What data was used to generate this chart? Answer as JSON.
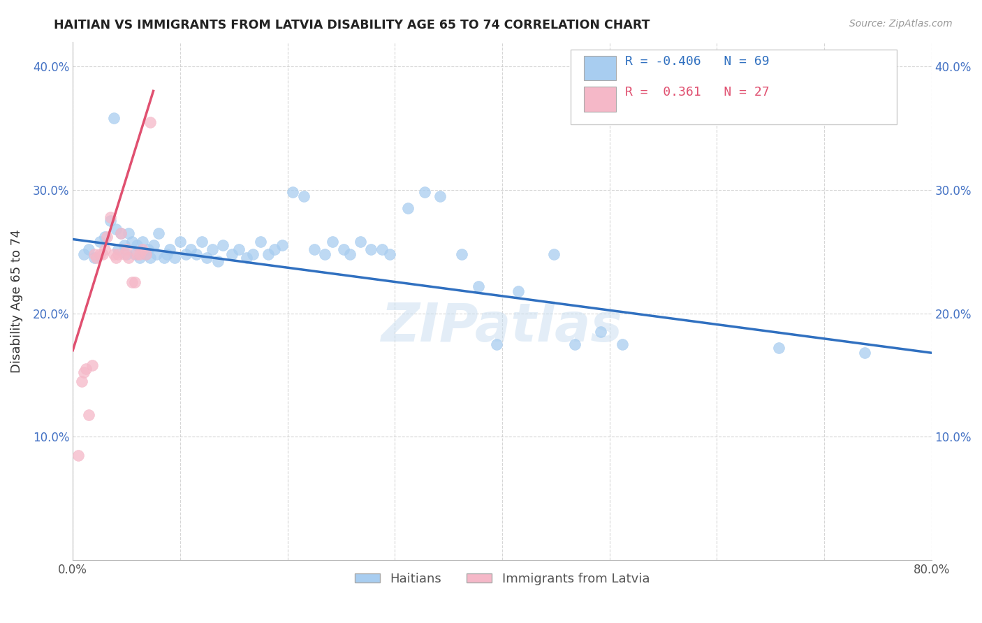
{
  "title": "HAITIAN VS IMMIGRANTS FROM LATVIA DISABILITY AGE 65 TO 74 CORRELATION CHART",
  "source": "Source: ZipAtlas.com",
  "ylabel": "Disability Age 65 to 74",
  "xlabel": "",
  "xlim": [
    0.0,
    0.8
  ],
  "ylim": [
    0.0,
    0.42
  ],
  "yticks": [
    0.0,
    0.1,
    0.2,
    0.3,
    0.4
  ],
  "ytick_labels": [
    "",
    "10.0%",
    "20.0%",
    "30.0%",
    "40.0%"
  ],
  "xticks": [
    0.0,
    0.1,
    0.2,
    0.3,
    0.4,
    0.5,
    0.6,
    0.7,
    0.8
  ],
  "xtick_labels": [
    "0.0%",
    "",
    "",
    "",
    "",
    "",
    "",
    "",
    "80.0%"
  ],
  "r_haitian": "-0.406",
  "n_haitian": "69",
  "r_latvia": "0.361",
  "n_latvia": "27",
  "haitian_color": "#a8cdf0",
  "latvia_color": "#f5b8c8",
  "haitian_line_color": "#3070c0",
  "latvia_line_color": "#e05070",
  "watermark": "ZIPatlas",
  "blue_x": [
    0.01,
    0.015,
    0.02,
    0.025,
    0.03,
    0.035,
    0.038,
    0.04,
    0.042,
    0.045,
    0.048,
    0.05,
    0.052,
    0.055,
    0.058,
    0.06,
    0.062,
    0.065,
    0.068,
    0.07,
    0.072,
    0.075,
    0.078,
    0.08,
    0.085,
    0.088,
    0.09,
    0.095,
    0.1,
    0.105,
    0.11,
    0.115,
    0.12,
    0.125,
    0.13,
    0.135,
    0.14,
    0.148,
    0.155,
    0.162,
    0.168,
    0.175,
    0.182,
    0.188,
    0.195,
    0.205,
    0.215,
    0.225,
    0.235,
    0.242,
    0.252,
    0.258,
    0.268,
    0.278,
    0.288,
    0.295,
    0.312,
    0.328,
    0.342,
    0.362,
    0.378,
    0.395,
    0.415,
    0.448,
    0.468,
    0.492,
    0.512,
    0.658,
    0.738
  ],
  "blue_y": [
    0.248,
    0.252,
    0.245,
    0.258,
    0.262,
    0.275,
    0.358,
    0.268,
    0.252,
    0.265,
    0.255,
    0.248,
    0.265,
    0.258,
    0.248,
    0.255,
    0.245,
    0.258,
    0.248,
    0.252,
    0.245,
    0.255,
    0.248,
    0.265,
    0.245,
    0.248,
    0.252,
    0.245,
    0.258,
    0.248,
    0.252,
    0.248,
    0.258,
    0.245,
    0.252,
    0.242,
    0.255,
    0.248,
    0.252,
    0.245,
    0.248,
    0.258,
    0.248,
    0.252,
    0.255,
    0.298,
    0.295,
    0.252,
    0.248,
    0.258,
    0.252,
    0.248,
    0.258,
    0.252,
    0.252,
    0.248,
    0.285,
    0.298,
    0.295,
    0.248,
    0.222,
    0.175,
    0.218,
    0.248,
    0.175,
    0.185,
    0.175,
    0.172,
    0.168
  ],
  "pink_x": [
    0.005,
    0.008,
    0.01,
    0.012,
    0.015,
    0.018,
    0.02,
    0.022,
    0.025,
    0.028,
    0.03,
    0.032,
    0.035,
    0.038,
    0.04,
    0.042,
    0.045,
    0.048,
    0.05,
    0.052,
    0.055,
    0.058,
    0.06,
    0.062,
    0.065,
    0.068,
    0.072
  ],
  "pink_y": [
    0.085,
    0.145,
    0.152,
    0.155,
    0.118,
    0.158,
    0.248,
    0.245,
    0.248,
    0.248,
    0.252,
    0.262,
    0.278,
    0.248,
    0.245,
    0.248,
    0.265,
    0.248,
    0.252,
    0.245,
    0.225,
    0.225,
    0.248,
    0.248,
    0.252,
    0.248,
    0.355
  ]
}
